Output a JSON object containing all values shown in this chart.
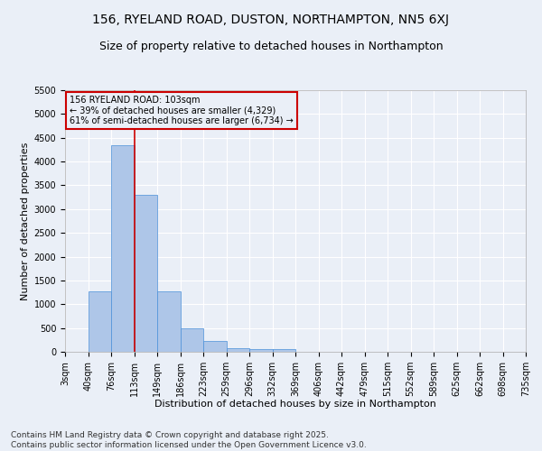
{
  "title": "156, RYELAND ROAD, DUSTON, NORTHAMPTON, NN5 6XJ",
  "subtitle": "Size of property relative to detached houses in Northampton",
  "xlabel": "Distribution of detached houses by size in Northampton",
  "ylabel": "Number of detached properties",
  "bar_values": [
    0,
    1270,
    4350,
    3300,
    1280,
    490,
    220,
    85,
    50,
    55,
    0,
    0,
    0,
    0,
    0,
    0,
    0,
    0,
    0,
    0
  ],
  "categories": [
    "3sqm",
    "40sqm",
    "76sqm",
    "113sqm",
    "149sqm",
    "186sqm",
    "223sqm",
    "259sqm",
    "296sqm",
    "332sqm",
    "369sqm",
    "406sqm",
    "442sqm",
    "479sqm",
    "515sqm",
    "552sqm",
    "589sqm",
    "625sqm",
    "662sqm",
    "698sqm",
    "735sqm"
  ],
  "bar_color": "#aec6e8",
  "bar_edge_color": "#4a90d9",
  "vline_x": 2.5,
  "vline_color": "#cc0000",
  "annotation_line1": "156 RYELAND ROAD: 103sqm",
  "annotation_line2": "← 39% of detached houses are smaller (4,329)",
  "annotation_line3": "61% of semi-detached houses are larger (6,734) →",
  "annotation_box_color": "#cc0000",
  "ylim": [
    0,
    5500
  ],
  "yticks": [
    0,
    500,
    1000,
    1500,
    2000,
    2500,
    3000,
    3500,
    4000,
    4500,
    5000,
    5500
  ],
  "footer_text": "Contains HM Land Registry data © Crown copyright and database right 2025.\nContains public sector information licensed under the Open Government Licence v3.0.",
  "bg_color": "#eaeff7",
  "grid_color": "#ffffff",
  "title_fontsize": 10,
  "subtitle_fontsize": 9,
  "label_fontsize": 8,
  "tick_fontsize": 7,
  "footer_fontsize": 6.5
}
